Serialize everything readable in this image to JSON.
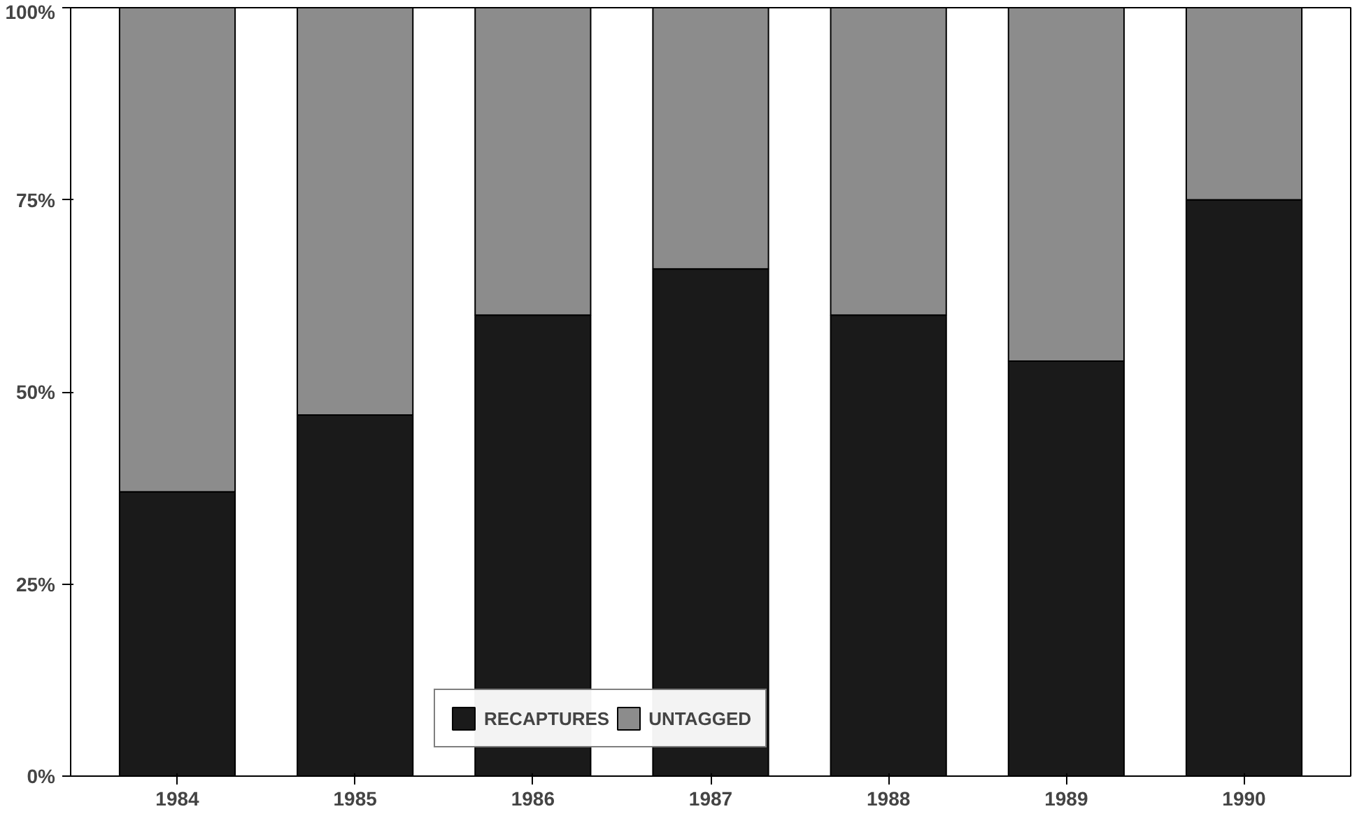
{
  "chart_data": {
    "type": "bar",
    "stacked": true,
    "categories": [
      "1984",
      "1985",
      "1986",
      "1987",
      "1988",
      "1989",
      "1990"
    ],
    "series": [
      {
        "name": "RECAPTURES",
        "color": "#1a1a1a",
        "values": [
          37,
          47,
          60,
          66,
          60,
          54,
          75
        ]
      },
      {
        "name": "UNTAGGED",
        "color": "#8c8c8c",
        "values": [
          63,
          53,
          40,
          34,
          40,
          46,
          25
        ]
      }
    ],
    "ylim": [
      0,
      100
    ],
    "yticks": [
      {
        "value": 0,
        "label": "0%"
      },
      {
        "value": 25,
        "label": "25%"
      },
      {
        "value": 50,
        "label": "50%"
      },
      {
        "value": 75,
        "label": "75%"
      },
      {
        "value": 100,
        "label": "100%"
      }
    ],
    "grid": false,
    "legend": "bottom"
  }
}
